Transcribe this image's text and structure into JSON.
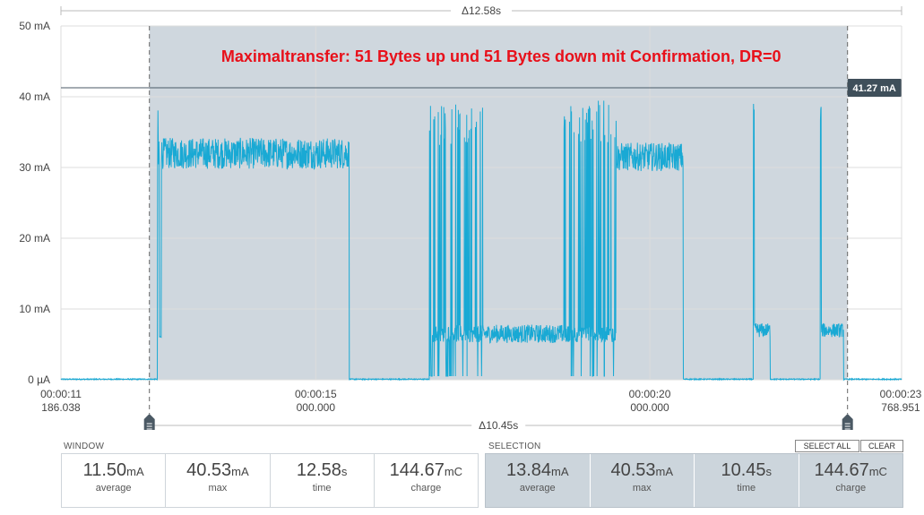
{
  "chart_data": {
    "type": "line",
    "title": "",
    "annotation": "Maximaltransfer: 51 Bytes up und 51 Bytes down mit Confirmation, DR=0",
    "y_unit": "mA",
    "ylim": [
      0,
      50
    ],
    "y_ticks": [
      {
        "value": 0,
        "label": "0 µA"
      },
      {
        "value": 10,
        "label": "10 mA"
      },
      {
        "value": 20,
        "label": "20 mA"
      },
      {
        "value": 30,
        "label": "30 mA"
      },
      {
        "value": 40,
        "label": "40 mA"
      },
      {
        "value": 50,
        "label": "50 mA"
      }
    ],
    "xlim": [
      11.186,
      23.769
    ],
    "x_ticks": [
      {
        "value": 11.186,
        "line1": "00:00:11",
        "line2": "186.038"
      },
      {
        "value": 15.0,
        "line1": "00:00:15",
        "line2": "000.000"
      },
      {
        "value": 20.0,
        "line1": "00:00:20",
        "line2": "000.000"
      },
      {
        "value": 23.769,
        "line1": "00:00:23",
        "line2": "768.951"
      }
    ],
    "selection": {
      "start": 12.51,
      "end": 22.96
    },
    "marker_value_label": "41.27 mA",
    "marker_value": 41.27,
    "delta_top": "Δ12.58s",
    "delta_bottom": "Δ10.45s",
    "grid": true,
    "series_color": "#19a9d4",
    "segments": [
      {
        "t0": 11.186,
        "t1": 12.63,
        "kind": "flat",
        "level": 0
      },
      {
        "t0": 12.63,
        "t1": 12.66,
        "kind": "spike",
        "level": 38.5
      },
      {
        "t0": 12.66,
        "t1": 12.69,
        "kind": "flat",
        "level": 6
      },
      {
        "t0": 12.69,
        "t1": 15.5,
        "kind": "noise",
        "level": 32,
        "amp": 2.2
      },
      {
        "t0": 15.5,
        "t1": 15.53,
        "kind": "flat",
        "level": 0
      },
      {
        "t0": 15.53,
        "t1": 16.7,
        "kind": "flat",
        "level": 0
      },
      {
        "t0": 16.7,
        "t1": 17.5,
        "kind": "burst",
        "level": 6.5,
        "peak": 39
      },
      {
        "t0": 17.5,
        "t1": 18.7,
        "kind": "noise",
        "level": 6.5,
        "amp": 1.3
      },
      {
        "t0": 18.7,
        "t1": 19.5,
        "kind": "burst",
        "level": 6.5,
        "peak": 39.5
      },
      {
        "t0": 19.5,
        "t1": 20.5,
        "kind": "noise",
        "level": 31.5,
        "amp": 2.0
      },
      {
        "t0": 20.5,
        "t1": 22.55,
        "kind": "flat",
        "level": 0
      },
      {
        "t0": 21.55,
        "t1": 21.8,
        "kind": "pulse",
        "level": 7,
        "peak": 39
      },
      {
        "t0": 22.55,
        "t1": 22.9,
        "kind": "pulse",
        "level": 7,
        "peak": 39.5
      },
      {
        "t0": 22.9,
        "t1": 23.769,
        "kind": "flat",
        "level": 0
      }
    ]
  },
  "window_panel": {
    "title": "WINDOW",
    "stats": [
      {
        "value": "11.50",
        "unit": "mA",
        "label": "average"
      },
      {
        "value": "40.53",
        "unit": "mA",
        "label": "max"
      },
      {
        "value": "12.58",
        "unit": "s",
        "label": "time"
      },
      {
        "value": "144.67",
        "unit": "mC",
        "label": "charge"
      }
    ]
  },
  "selection_panel": {
    "title": "SELECTION",
    "select_all_label": "SELECT ALL",
    "clear_label": "CLEAR",
    "stats": [
      {
        "value": "13.84",
        "unit": "mA",
        "label": "average"
      },
      {
        "value": "40.53",
        "unit": "mA",
        "label": "max"
      },
      {
        "value": "10.45",
        "unit": "s",
        "label": "time"
      },
      {
        "value": "144.67",
        "unit": "mC",
        "label": "charge"
      }
    ]
  }
}
